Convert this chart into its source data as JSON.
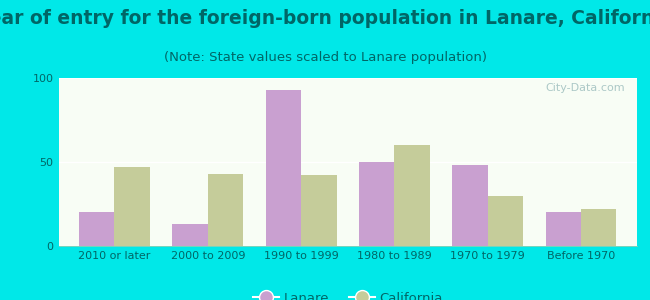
{
  "title": "Year of entry for the foreign-born population in Lanare, California",
  "subtitle": "(Note: State values scaled to Lanare population)",
  "categories": [
    "2010 or later",
    "2000 to 2009",
    "1990 to 1999",
    "1980 to 1989",
    "1970 to 1979",
    "Before 1970"
  ],
  "lanare_values": [
    20,
    13,
    93,
    50,
    48,
    20
  ],
  "california_values": [
    47,
    43,
    42,
    60,
    30,
    22
  ],
  "lanare_color": "#c9a0d0",
  "california_color": "#c5cc9a",
  "background_outer": "#00e8e8",
  "background_inner_top": "#f8fdf5",
  "background_inner_bottom": "#e8f0d8",
  "ylim": [
    0,
    100
  ],
  "yticks": [
    0,
    50,
    100
  ],
  "bar_width": 0.38,
  "title_fontsize": 13.5,
  "subtitle_fontsize": 9.5,
  "tick_fontsize": 8,
  "title_color": "#006666",
  "subtitle_color": "#006666",
  "tick_color": "#006666",
  "legend_labels": [
    "Lanare",
    "California"
  ],
  "watermark": "City-Data.com"
}
